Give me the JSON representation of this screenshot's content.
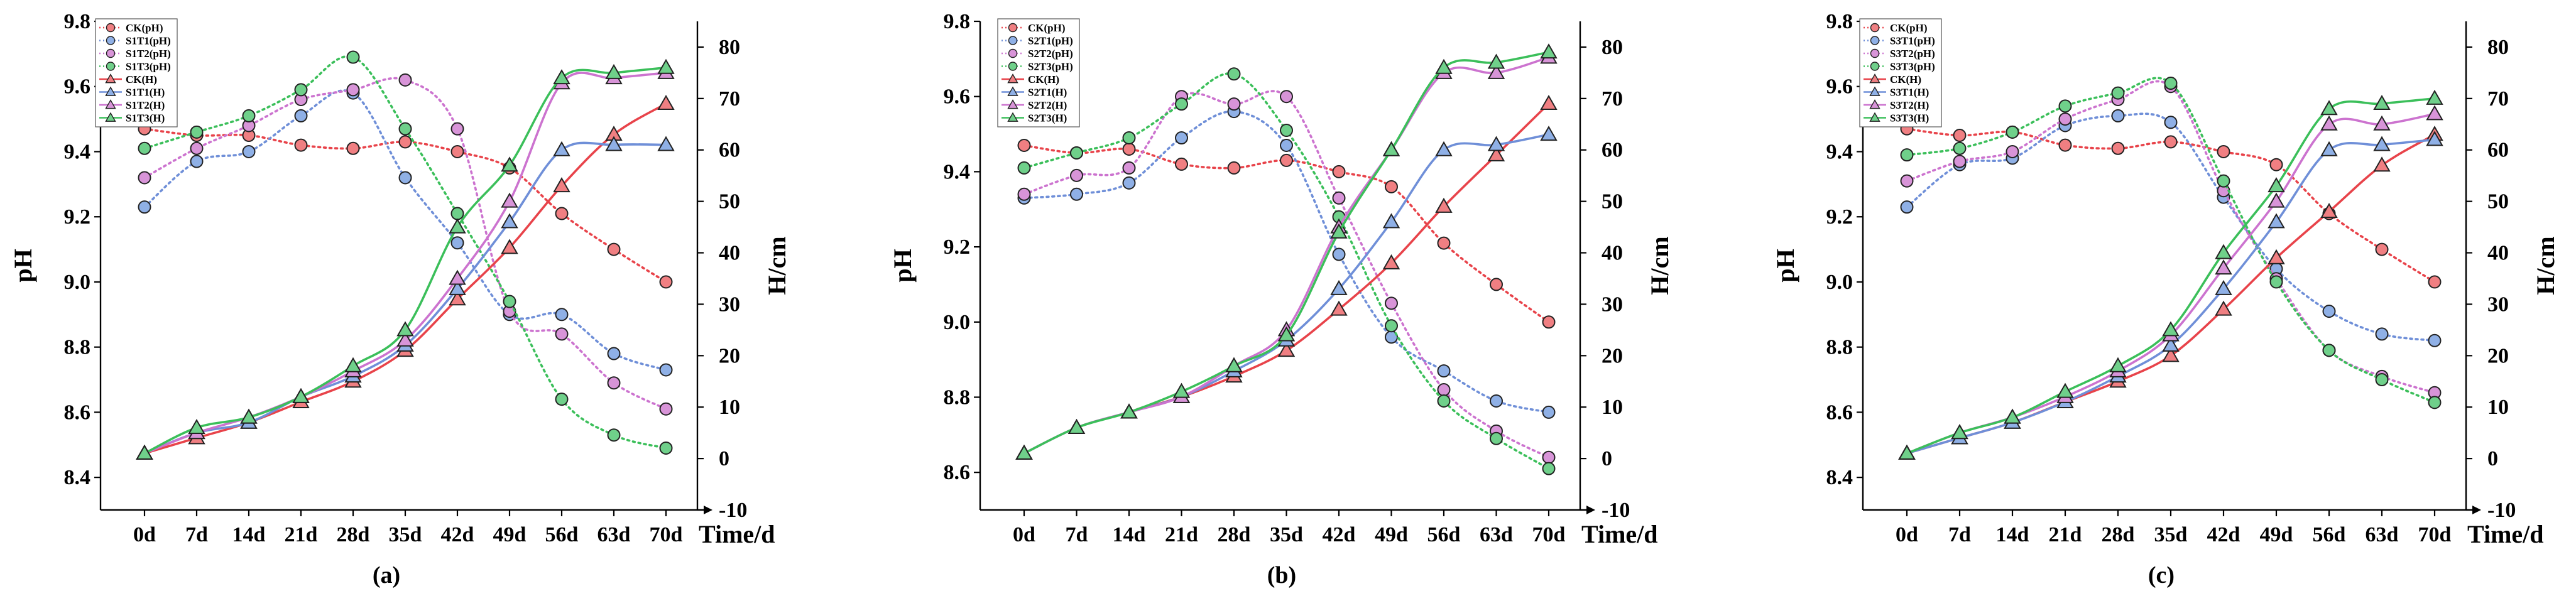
{
  "figure": {
    "x_categories": [
      "0d",
      "7d",
      "14d",
      "21d",
      "28d",
      "35d",
      "42d",
      "49d",
      "56d",
      "63d",
      "70d"
    ],
    "x_axis_label": "Time/d",
    "left_axis_label": "pH",
    "right_axis_label": "H/cm",
    "colors": {
      "CK": "#e8434a",
      "T1": "#6f8fd8",
      "T2": "#cc73cf",
      "T3": "#3bbf5a",
      "CK_fill": "#f07f82",
      "T1_fill": "#8fb0e6",
      "T2_fill": "#d894d8",
      "T3_fill": "#6fd08a"
    }
  },
  "chart_data": [
    {
      "type": "line",
      "caption": "(a)",
      "ylabel": "pH",
      "y2label": "H/cm",
      "ylim": [
        8.3,
        9.8
      ],
      "y2lim": [
        -10,
        85
      ],
      "yticks": [
        "8.4",
        "8.6",
        "8.8",
        "9.0",
        "9.2",
        "9.4",
        "9.6",
        "9.8"
      ],
      "y2ticks": [
        "-10",
        "0",
        "10",
        "20",
        "30",
        "40",
        "50",
        "60",
        "70",
        "80"
      ],
      "legend_position": "top-left",
      "series": [
        {
          "name": "CK(pH)",
          "axis": "pH",
          "group": "CK",
          "marker": "circle",
          "values": [
            9.47,
            9.45,
            9.45,
            9.42,
            9.41,
            9.43,
            9.4,
            9.35,
            9.21,
            9.1,
            9.0
          ]
        },
        {
          "name": "S1T1(pH)",
          "axis": "pH",
          "group": "T1",
          "marker": "circle",
          "values": [
            9.23,
            9.37,
            9.4,
            9.51,
            9.58,
            9.32,
            9.12,
            8.9,
            8.9,
            8.78,
            8.73
          ]
        },
        {
          "name": "S1T2(pH)",
          "axis": "pH",
          "group": "T2",
          "marker": "circle",
          "values": [
            9.32,
            9.41,
            9.48,
            9.56,
            9.59,
            9.62,
            9.47,
            8.91,
            8.84,
            8.69,
            8.61
          ]
        },
        {
          "name": "S1T3(pH)",
          "axis": "pH",
          "group": "T3",
          "marker": "circle",
          "values": [
            9.41,
            9.46,
            9.51,
            9.59,
            9.69,
            9.47,
            9.21,
            8.94,
            8.64,
            8.53,
            8.49
          ]
        },
        {
          "name": "CK(H)",
          "axis": "H",
          "group": "CK",
          "marker": "triangle",
          "values": [
            1,
            4,
            7,
            11,
            15,
            21,
            31,
            41,
            53,
            63,
            69
          ]
        },
        {
          "name": "S1T1(H)",
          "axis": "H",
          "group": "T1",
          "marker": "triangle",
          "values": [
            1,
            5,
            7,
            12,
            16,
            22,
            33,
            46,
            60,
            61,
            61
          ]
        },
        {
          "name": "S1T2(H)",
          "axis": "H",
          "group": "T2",
          "marker": "triangle",
          "values": [
            1,
            5,
            8,
            12,
            17,
            23,
            35,
            50,
            73,
            74,
            75
          ]
        },
        {
          "name": "S1T3(H)",
          "axis": "H",
          "group": "T3",
          "marker": "triangle",
          "values": [
            1,
            6,
            8,
            12,
            18,
            25,
            45,
            57,
            74,
            75,
            76
          ]
        }
      ]
    },
    {
      "type": "line",
      "caption": "(b)",
      "ylabel": "pH",
      "y2label": "H/cm",
      "ylim": [
        8.5,
        9.8
      ],
      "y2lim": [
        -10,
        85
      ],
      "yticks": [
        "8.6",
        "8.8",
        "9.0",
        "9.2",
        "9.4",
        "9.6",
        "9.8"
      ],
      "y2ticks": [
        "-10",
        "0",
        "10",
        "20",
        "30",
        "40",
        "50",
        "60",
        "70",
        "80"
      ],
      "legend_position": "top-left",
      "series": [
        {
          "name": "CK(pH)",
          "axis": "pH",
          "group": "CK",
          "marker": "circle",
          "values": [
            9.47,
            9.45,
            9.46,
            9.42,
            9.41,
            9.43,
            9.4,
            9.36,
            9.21,
            9.1,
            9.0
          ]
        },
        {
          "name": "S2T1(pH)",
          "axis": "pH",
          "group": "T1",
          "marker": "circle",
          "values": [
            9.33,
            9.34,
            9.37,
            9.49,
            9.56,
            9.47,
            9.18,
            8.96,
            8.87,
            8.79,
            8.76
          ]
        },
        {
          "name": "S2T2(pH)",
          "axis": "pH",
          "group": "T2",
          "marker": "circle",
          "values": [
            9.34,
            9.39,
            9.41,
            9.6,
            9.58,
            9.6,
            9.33,
            9.05,
            8.82,
            8.71,
            8.64
          ]
        },
        {
          "name": "S2T3(pH)",
          "axis": "pH",
          "group": "T3",
          "marker": "circle",
          "values": [
            9.41,
            9.45,
            9.49,
            9.58,
            9.66,
            9.51,
            9.28,
            8.99,
            8.79,
            8.69,
            8.61
          ]
        },
        {
          "name": "CK(H)",
          "axis": "H",
          "group": "CK",
          "marker": "triangle",
          "values": [
            1,
            6,
            9,
            12,
            16,
            21,
            29,
            38,
            49,
            59,
            69
          ]
        },
        {
          "name": "S2T1(H)",
          "axis": "H",
          "group": "T1",
          "marker": "triangle",
          "values": [
            1,
            6,
            9,
            12,
            17,
            23,
            33,
            46,
            60,
            61,
            63
          ]
        },
        {
          "name": "S2T2(H)",
          "axis": "H",
          "group": "T2",
          "marker": "triangle",
          "values": [
            1,
            6,
            9,
            12,
            18,
            25,
            45,
            60,
            75,
            75,
            78
          ]
        },
        {
          "name": "S2T3(H)",
          "axis": "H",
          "group": "T3",
          "marker": "triangle",
          "values": [
            1,
            6,
            9,
            13,
            18,
            24,
            44,
            60,
            76,
            77,
            79
          ]
        }
      ]
    },
    {
      "type": "line",
      "caption": "(c)",
      "ylabel": "pH",
      "y2label": "H/cm",
      "ylim": [
        8.3,
        9.8
      ],
      "y2lim": [
        -10,
        85
      ],
      "yticks": [
        "8.4",
        "8.6",
        "8.8",
        "9.0",
        "9.2",
        "9.4",
        "9.6",
        "9.8"
      ],
      "y2ticks": [
        "-10",
        "0",
        "10",
        "20",
        "30",
        "40",
        "50",
        "60",
        "70",
        "80"
      ],
      "legend_position": "top-left",
      "series": [
        {
          "name": "CK(pH)",
          "axis": "pH",
          "group": "CK",
          "marker": "circle",
          "values": [
            9.47,
            9.45,
            9.46,
            9.42,
            9.41,
            9.43,
            9.4,
            9.36,
            9.21,
            9.1,
            9.0
          ]
        },
        {
          "name": "S3T1(pH)",
          "axis": "pH",
          "group": "T1",
          "marker": "circle",
          "values": [
            9.23,
            9.36,
            9.38,
            9.48,
            9.51,
            9.49,
            9.26,
            9.04,
            8.91,
            8.84,
            8.82
          ]
        },
        {
          "name": "S3T2(pH)",
          "axis": "pH",
          "group": "T2",
          "marker": "circle",
          "values": [
            9.31,
            9.37,
            9.4,
            9.5,
            9.56,
            9.6,
            9.28,
            9.01,
            8.79,
            8.71,
            8.66
          ]
        },
        {
          "name": "S3T3(pH)",
          "axis": "pH",
          "group": "T3",
          "marker": "circle",
          "values": [
            9.39,
            9.41,
            9.46,
            9.54,
            9.58,
            9.61,
            9.31,
            9.0,
            8.79,
            8.7,
            8.63
          ]
        },
        {
          "name": "CK(H)",
          "axis": "H",
          "group": "CK",
          "marker": "triangle",
          "values": [
            1,
            4,
            7,
            11,
            15,
            20,
            29,
            39,
            48,
            57,
            63
          ]
        },
        {
          "name": "S3T1(H)",
          "axis": "H",
          "group": "T1",
          "marker": "triangle",
          "values": [
            1,
            4,
            7,
            11,
            16,
            22,
            33,
            46,
            60,
            61,
            62
          ]
        },
        {
          "name": "S3T2(H)",
          "axis": "H",
          "group": "T2",
          "marker": "triangle",
          "values": [
            1,
            5,
            8,
            12,
            17,
            24,
            37,
            50,
            65,
            65,
            67
          ]
        },
        {
          "name": "S3T3(H)",
          "axis": "H",
          "group": "T3",
          "marker": "triangle",
          "values": [
            1,
            5,
            8,
            13,
            18,
            25,
            40,
            53,
            68,
            69,
            70
          ]
        }
      ]
    }
  ]
}
